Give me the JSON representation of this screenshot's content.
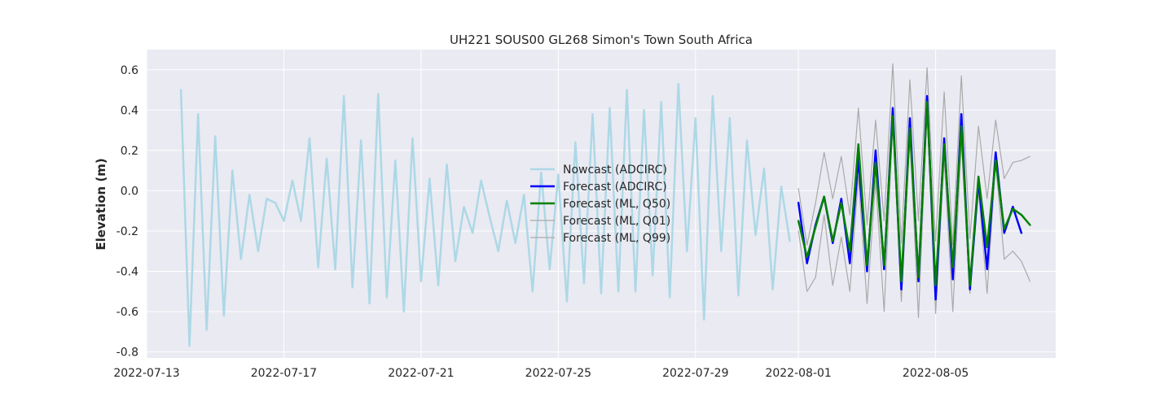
{
  "chart_data": {
    "type": "line",
    "title": "UH221 SOUS00 GL268 Simon's Town South Africa",
    "xlabel": "",
    "ylabel": "Elevation (m)",
    "xlim": [
      "2022-07-13T00:00",
      "2022-08-08T12:00"
    ],
    "ylim": [
      -0.83,
      0.7
    ],
    "x_ticks": [
      "2022-07-13",
      "2022-07-17",
      "2022-07-21",
      "2022-07-25",
      "2022-07-29",
      "2022-08-01",
      "2022-08-05"
    ],
    "y_ticks": [
      "-0.8",
      "-0.6",
      "-0.4",
      "-0.2",
      "0.0",
      "0.2",
      "0.4",
      "0.6"
    ],
    "grid": true,
    "legend_position": "center",
    "series": [
      {
        "name": "Nowcast (ADCIRC)",
        "color": "#add8e6",
        "start": "2022-07-14T00:00",
        "step_hours": 6,
        "values": [
          0.5,
          -0.77,
          0.38,
          -0.69,
          0.27,
          -0.62,
          0.1,
          -0.34,
          -0.02,
          -0.3,
          -0.04,
          -0.06,
          -0.15,
          0.05,
          -0.15,
          0.26,
          -0.38,
          0.16,
          -0.39,
          0.47,
          -0.48,
          0.25,
          -0.56,
          0.48,
          -0.53,
          0.15,
          -0.6,
          0.26,
          -0.45,
          0.06,
          -0.47,
          0.13,
          -0.35,
          -0.08,
          -0.21,
          0.05,
          -0.13,
          -0.3,
          -0.05,
          -0.26,
          -0.02,
          -0.5,
          0.09,
          -0.39,
          0.08,
          -0.55,
          0.24,
          -0.46,
          0.38,
          -0.51,
          0.41,
          -0.5,
          0.5,
          -0.5,
          0.4,
          -0.42,
          0.44,
          -0.53,
          0.53,
          -0.3,
          0.36,
          -0.64,
          0.47,
          -0.3,
          0.36,
          -0.52,
          0.25,
          -0.22,
          0.11,
          -0.49,
          0.02,
          -0.25
        ]
      },
      {
        "name": "Forecast (ADCIRC)",
        "color": "#0000ff",
        "start": "2022-08-01T00:00",
        "step_hours": 6,
        "values": [
          -0.06,
          -0.36,
          -0.17,
          -0.03,
          -0.26,
          -0.04,
          -0.36,
          0.16,
          -0.4,
          0.2,
          -0.39,
          0.41,
          -0.49,
          0.36,
          -0.45,
          0.47,
          -0.54,
          0.26,
          -0.44,
          0.38,
          -0.49,
          0.05,
          -0.39,
          0.19,
          -0.21,
          -0.08,
          -0.21
        ]
      },
      {
        "name": "Forecast (ML, Q50)",
        "color": "#008000",
        "start": "2022-08-01T00:00",
        "step_hours": 6,
        "values": [
          -0.15,
          -0.33,
          -0.18,
          -0.03,
          -0.25,
          -0.06,
          -0.3,
          0.23,
          -0.37,
          0.14,
          -0.37,
          0.37,
          -0.45,
          0.31,
          -0.43,
          0.44,
          -0.47,
          0.23,
          -0.38,
          0.32,
          -0.47,
          0.07,
          -0.28,
          0.15,
          -0.19,
          -0.09,
          -0.12,
          -0.17
        ]
      },
      {
        "name": "Forecast (ML, Q01)",
        "color": "#aaaaaa",
        "start": "2022-08-01T00:00",
        "step_hours": 6,
        "values": [
          -0.2,
          -0.5,
          -0.43,
          -0.12,
          -0.47,
          -0.23,
          -0.5,
          0.07,
          -0.56,
          0.05,
          -0.6,
          0.34,
          -0.55,
          0.27,
          -0.63,
          0.39,
          -0.61,
          0.16,
          -0.6,
          0.24,
          -0.51,
          0.0,
          -0.51,
          0.14,
          -0.34,
          -0.3,
          -0.35,
          -0.45
        ]
      },
      {
        "name": "Forecast (ML, Q99)",
        "color": "#aaaaaa",
        "start": "2022-08-01T00:00",
        "step_hours": 6,
        "values": [
          0.01,
          -0.27,
          -0.06,
          0.19,
          -0.04,
          0.17,
          -0.12,
          0.41,
          -0.17,
          0.35,
          -0.15,
          0.63,
          -0.26,
          0.55,
          -0.15,
          0.61,
          -0.25,
          0.49,
          -0.27,
          0.57,
          -0.24,
          0.32,
          -0.04,
          0.35,
          0.06,
          0.14,
          0.15,
          0.17
        ]
      }
    ]
  }
}
